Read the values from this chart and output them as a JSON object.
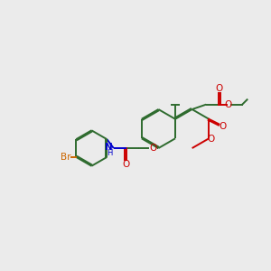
{
  "bg_color": "#ebebeb",
  "bond_color": "#2e6b2e",
  "hetero_color": "#cc0000",
  "N_color": "#0000cc",
  "Br_color": "#cc6600",
  "lw": 1.4,
  "dbl_off": 0.045,
  "fs": 7.5,
  "fig_w": 3.0,
  "fig_h": 3.0,
  "dpi": 100,
  "xlim": [
    0,
    10
  ],
  "ylim": [
    0,
    10
  ]
}
